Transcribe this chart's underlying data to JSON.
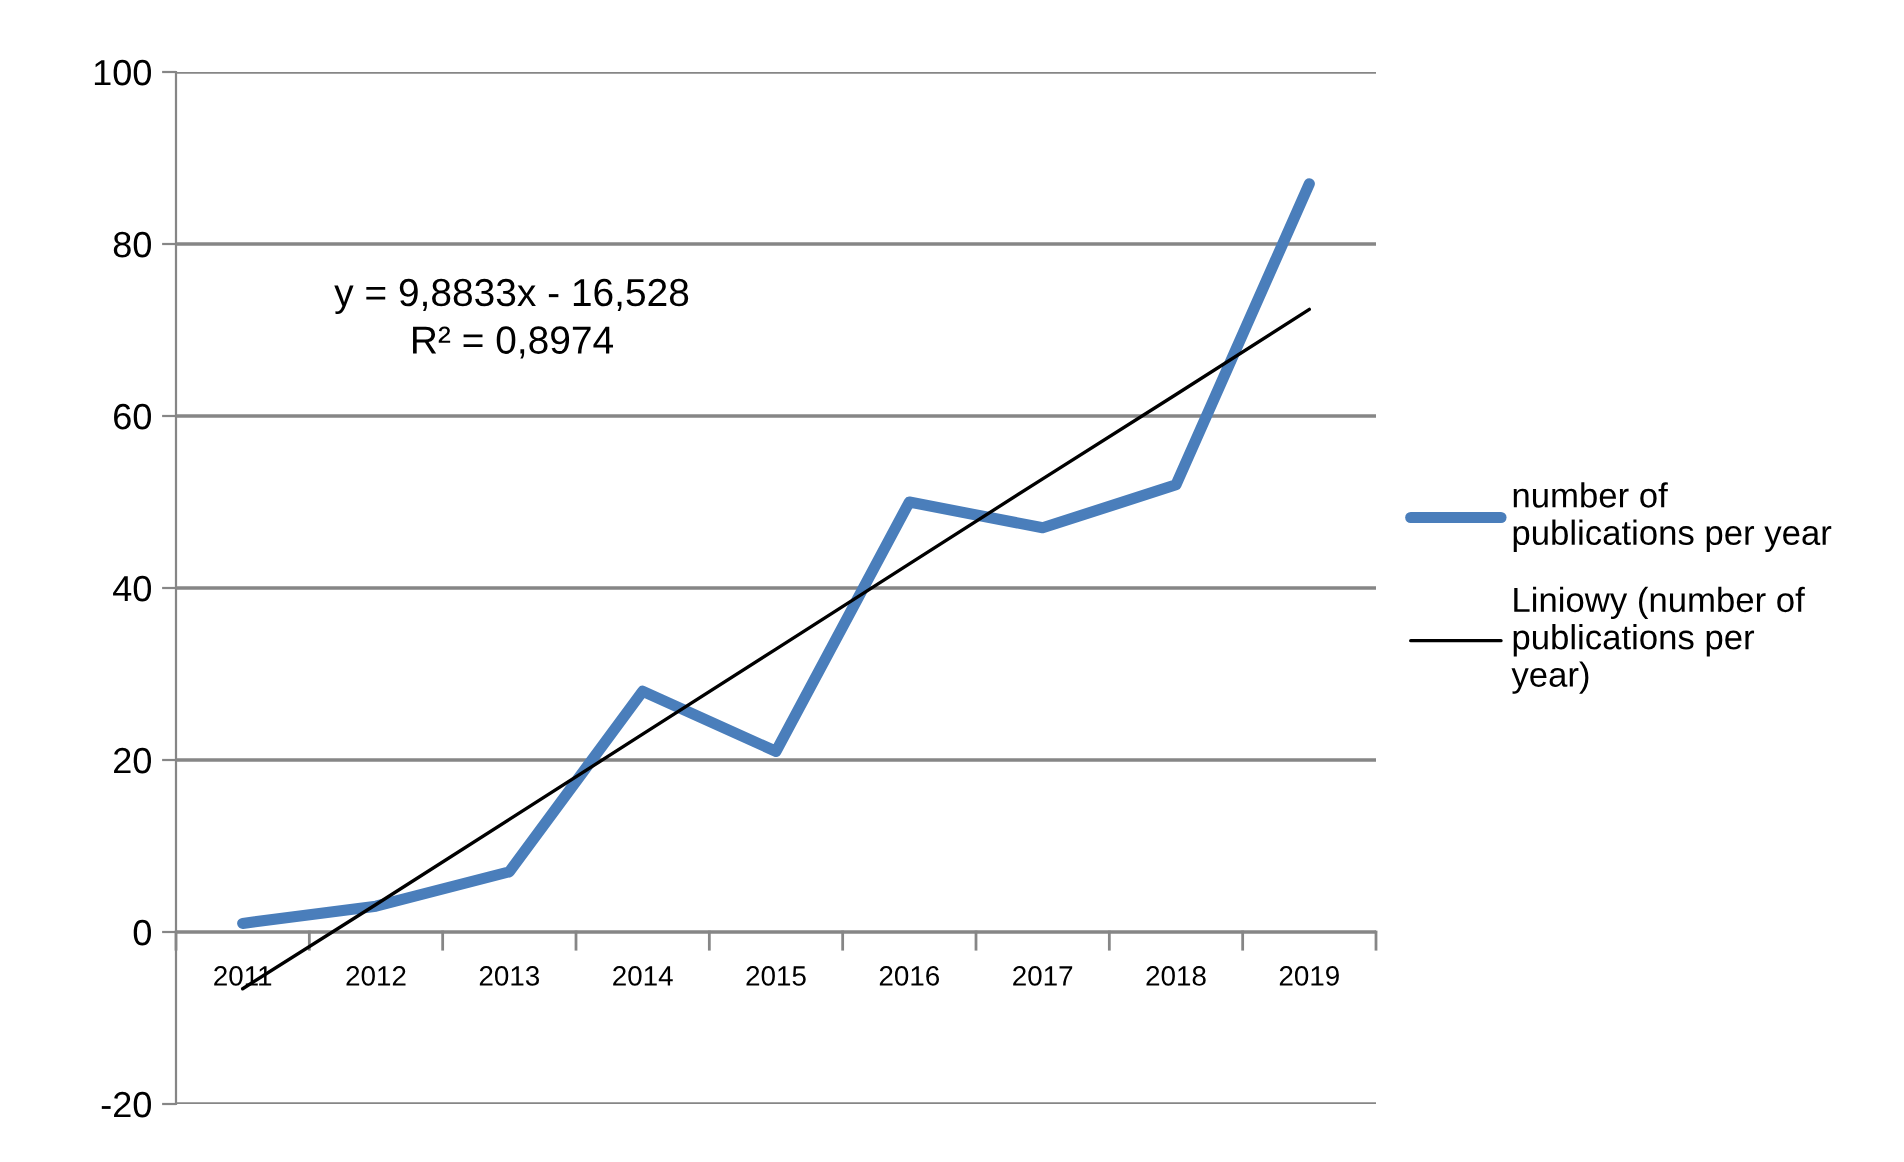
{
  "chart_data": {
    "type": "line",
    "categories": [
      "2011",
      "2012",
      "2013",
      "2014",
      "2015",
      "2016",
      "2017",
      "2018",
      "2019"
    ],
    "series": [
      {
        "name": "number of publications per year",
        "color": "#4a7ebb",
        "values": [
          1,
          3,
          7,
          28,
          21,
          50,
          47,
          52,
          87
        ]
      },
      {
        "name": "Liniowy (number of publications per year)",
        "color": "#000000",
        "type": "line",
        "values": [
          -6.6,
          3.2,
          13.1,
          23.0,
          32.9,
          42.8,
          52.7,
          62.5,
          72.4
        ]
      }
    ],
    "ylim": [
      -20,
      100
    ],
    "yticks": [
      -20,
      0,
      20,
      40,
      60,
      80,
      100
    ],
    "grid": "y",
    "legend": "right",
    "annotations": [
      "y = 9,8833x - 16,528\nR² = 0,8974"
    ]
  }
}
